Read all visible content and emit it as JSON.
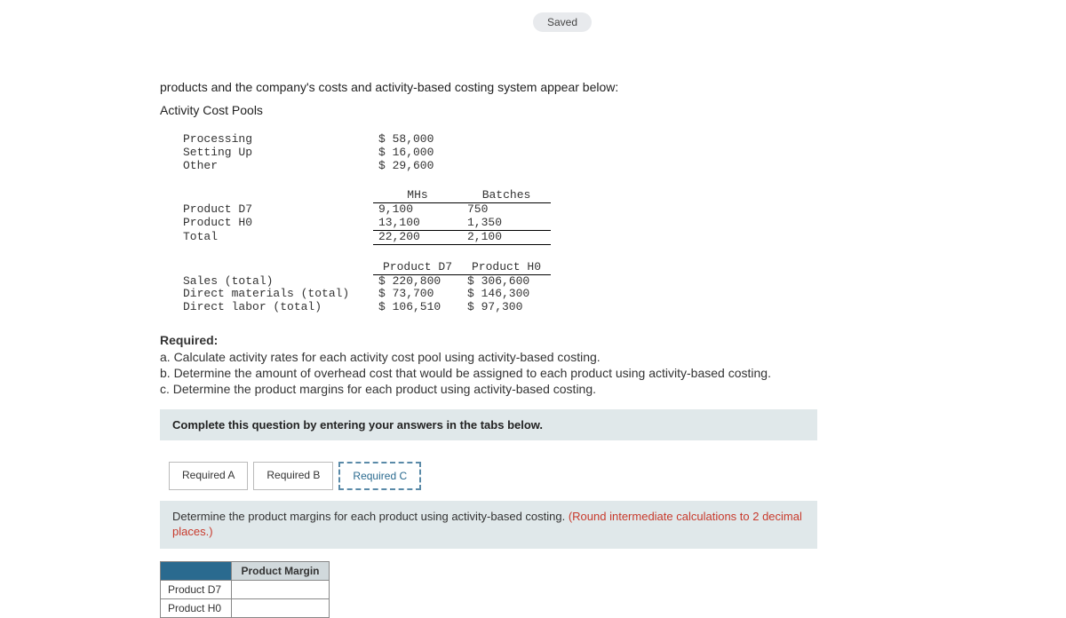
{
  "status": {
    "saved": "Saved"
  },
  "intro": "products and the company's costs and activity-based costing system appear below:",
  "activityPoolsTitle": "Activity Cost Pools",
  "activityPools": {
    "rows": [
      {
        "label": "Processing",
        "cost": "$ 58,000"
      },
      {
        "label": "Setting Up",
        "cost": "$ 16,000"
      },
      {
        "label": "Other",
        "cost": "$ 29,600"
      }
    ]
  },
  "driverTable": {
    "headers": {
      "c1": "MHs",
      "c2": "Batches"
    },
    "rows": [
      {
        "label": "Product D7",
        "c1": "9,100",
        "c2": "750"
      },
      {
        "label": "Product H0",
        "c1": "13,100",
        "c2": "1,350"
      }
    ],
    "total": {
      "label": "Total",
      "c1": "22,200",
      "c2": "2,100"
    }
  },
  "productTable": {
    "headers": {
      "c1": "Product D7",
      "c2": "Product H0"
    },
    "rows": [
      {
        "label": "Sales (total)",
        "c1": "$ 220,800",
        "c2": "$ 306,600"
      },
      {
        "label": "Direct materials (total)",
        "c1": "$ 73,700",
        "c2": "$ 146,300"
      },
      {
        "label": "Direct labor (total)",
        "c1": "$ 106,510",
        "c2": "$ 97,300"
      }
    ]
  },
  "required": {
    "heading": "Required:",
    "a": "a. Calculate activity rates for each activity cost pool using activity-based costing.",
    "b": "b. Determine the amount of overhead cost that would be assigned to each product using activity-based costing.",
    "c": "c. Determine the product margins for each product using activity-based costing."
  },
  "tabsInstruction": "Complete this question by entering your answers in the tabs below.",
  "tabs": {
    "a": "Required A",
    "b": "Required B",
    "c": "Required C"
  },
  "tabC": {
    "instrMain": "Determine the product margins for each product using activity-based costing. ",
    "instrAccent": "(Round intermediate calculations to 2 decimal places.)"
  },
  "marginTable": {
    "header": "Product Margin",
    "rows": [
      {
        "label": "Product D7"
      },
      {
        "label": "Product H0"
      }
    ]
  },
  "colors": {
    "pill": "#e8eaed",
    "band": "#e0e8ea",
    "accent": "#c83a2c",
    "activeTab": "#5a8aa8",
    "corner": "#2a6a8f"
  }
}
